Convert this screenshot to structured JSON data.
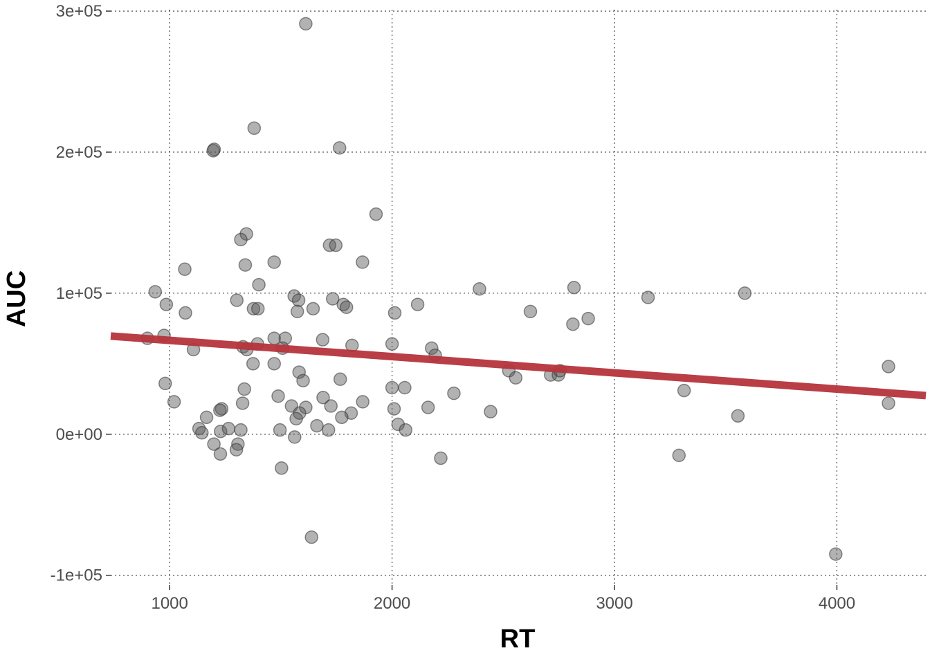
{
  "chart_data": {
    "type": "scatter",
    "title": "",
    "xlabel": "RT",
    "ylabel": "AUC",
    "xlim": [
      735,
      4400
    ],
    "ylim": [
      -107000,
      301000
    ],
    "x_ticks": [
      1000,
      2000,
      3000,
      4000
    ],
    "x_tick_labels": [
      "1000",
      "2000",
      "3000",
      "4000"
    ],
    "y_ticks": [
      -100000,
      0,
      100000,
      200000,
      300000
    ],
    "y_tick_labels": [
      "-1e+05",
      "0e+00",
      "1e+05",
      "2e+05",
      "3e+05"
    ],
    "grid": true,
    "colors": {
      "point_fill": "#555555",
      "point_stroke": "#333333",
      "trend_line": "#b5343c"
    },
    "trend_line": {
      "x": [
        735,
        4400
      ],
      "y": [
        69600,
        27400
      ]
    },
    "points": [
      [
        1612,
        291000
      ],
      [
        1380,
        217000
      ],
      [
        1200,
        202000
      ],
      [
        1196,
        201000
      ],
      [
        1764,
        203000
      ],
      [
        1928,
        156000
      ],
      [
        1345,
        142000
      ],
      [
        1320,
        138000
      ],
      [
        1719,
        134000
      ],
      [
        1747,
        134000
      ],
      [
        1340,
        120000
      ],
      [
        1470,
        122000
      ],
      [
        1867,
        122000
      ],
      [
        1068,
        117000
      ],
      [
        1401,
        106000
      ],
      [
        2818,
        104000
      ],
      [
        2393,
        103000
      ],
      [
        935,
        101000
      ],
      [
        3586,
        100000
      ],
      [
        1560,
        98000
      ],
      [
        1302,
        95000
      ],
      [
        1733,
        96000
      ],
      [
        1580,
        95000
      ],
      [
        3151,
        97000
      ],
      [
        985,
        92000
      ],
      [
        1781,
        92000
      ],
      [
        2115,
        92000
      ],
      [
        1377,
        89000
      ],
      [
        1397,
        89000
      ],
      [
        1645,
        89000
      ],
      [
        1795,
        90000
      ],
      [
        1071,
        86000
      ],
      [
        1574,
        87000
      ],
      [
        2012,
        86000
      ],
      [
        2622,
        87000
      ],
      [
        2882,
        82000
      ],
      [
        2813,
        78000
      ],
      [
        900,
        68000
      ],
      [
        975,
        70000
      ],
      [
        1470,
        68000
      ],
      [
        1520,
        68000
      ],
      [
        1688,
        67000
      ],
      [
        1820,
        63000
      ],
      [
        1395,
        64000
      ],
      [
        2000,
        64000
      ],
      [
        1330,
        62000
      ],
      [
        1347,
        60000
      ],
      [
        1508,
        61000
      ],
      [
        2178,
        61000
      ],
      [
        1107,
        60000
      ],
      [
        2194,
        56000
      ],
      [
        1375,
        50000
      ],
      [
        1470,
        50000
      ],
      [
        2525,
        45000
      ],
      [
        2713,
        42000
      ],
      [
        2748,
        42000
      ],
      [
        2755,
        45000
      ],
      [
        2556,
        40000
      ],
      [
        1582,
        44000
      ],
      [
        1600,
        38000
      ],
      [
        1767,
        39000
      ],
      [
        980,
        36000
      ],
      [
        4232,
        48000
      ],
      [
        1020,
        23000
      ],
      [
        1336,
        32000
      ],
      [
        1488,
        27000
      ],
      [
        1690,
        26000
      ],
      [
        1868,
        23000
      ],
      [
        2000,
        33000
      ],
      [
        2057,
        33000
      ],
      [
        2278,
        29000
      ],
      [
        3313,
        31000
      ],
      [
        1328,
        22000
      ],
      [
        1548,
        20000
      ],
      [
        1612,
        19000
      ],
      [
        1725,
        20000
      ],
      [
        1816,
        15000
      ],
      [
        1584,
        15000
      ],
      [
        1569,
        11000
      ],
      [
        1774,
        12000
      ],
      [
        2009,
        18000
      ],
      [
        2162,
        19000
      ],
      [
        2443,
        16000
      ],
      [
        3555,
        13000
      ],
      [
        4232,
        22000
      ],
      [
        1234,
        18000
      ],
      [
        1226,
        17000
      ],
      [
        1166,
        12000
      ],
      [
        1132,
        4000
      ],
      [
        1145,
        1000
      ],
      [
        1229,
        2000
      ],
      [
        1265,
        4000
      ],
      [
        1320,
        3000
      ],
      [
        1496,
        3000
      ],
      [
        1562,
        -2000
      ],
      [
        1662,
        6000
      ],
      [
        1714,
        3000
      ],
      [
        2027,
        7000
      ],
      [
        2061,
        3000
      ],
      [
        1199,
        -7000
      ],
      [
        1307,
        -7000
      ],
      [
        1300,
        -11000
      ],
      [
        1228,
        -14000
      ],
      [
        2219,
        -17000
      ],
      [
        3290,
        -15000
      ],
      [
        1503,
        -24000
      ],
      [
        1638,
        -73000
      ],
      [
        3995,
        -85000
      ]
    ]
  }
}
